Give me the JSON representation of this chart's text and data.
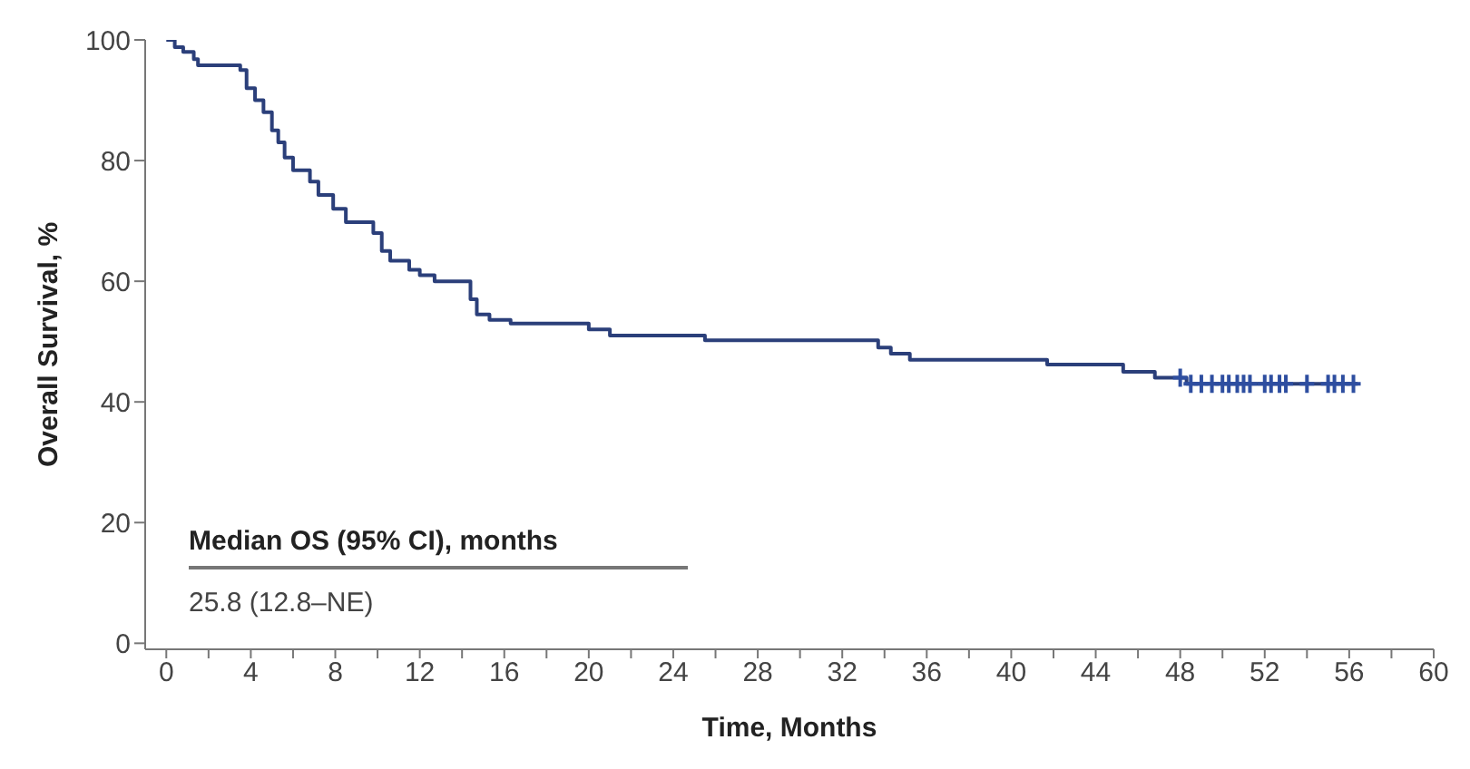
{
  "chart_data": {
    "type": "step",
    "xlabel": "Time, Months",
    "ylabel": "Overall Survival, %",
    "xlim": [
      -1,
      60
    ],
    "ylim": [
      -1,
      100
    ],
    "xticks": [
      0,
      {
        "value": 2,
        "label": null
      },
      4,
      {
        "value": 6,
        "label": null
      },
      8,
      {
        "value": 10,
        "label": null
      },
      12,
      {
        "value": 14,
        "label": null
      },
      16,
      {
        "value": 18,
        "label": null
      },
      20,
      {
        "value": 22,
        "label": null
      },
      24,
      {
        "value": 26,
        "label": null
      },
      28,
      {
        "value": 30,
        "label": null
      },
      32,
      {
        "value": 34,
        "label": null
      },
      36,
      {
        "value": 38,
        "label": null
      },
      40,
      {
        "value": 42,
        "label": null
      },
      44,
      {
        "value": 46,
        "label": null
      },
      48,
      {
        "value": 50,
        "label": null
      },
      52,
      {
        "value": 54,
        "label": null
      },
      56,
      {
        "value": 58,
        "label": null
      },
      60
    ],
    "yticks": [
      0,
      20,
      40,
      60,
      80,
      100
    ],
    "grid": false,
    "annotations": [
      "Median OS (95% CI), months",
      "25.8 (12.8–NE)"
    ],
    "series": [
      {
        "color": "#2b3f7a",
        "marker": "none",
        "x": [
          0,
          0.4,
          0.8,
          1.3,
          1.5,
          3.5,
          3.8,
          4.2,
          4.6,
          5.0,
          5.3,
          5.6,
          6.0,
          6.8,
          7.2,
          7.9,
          8.5,
          9.8,
          10.2,
          10.6,
          11.5,
          12.0,
          12.7,
          14.4,
          14.7,
          15.3,
          16.3,
          20,
          21,
          25.5,
          33.7,
          34.3,
          35.2,
          41.7,
          45.3,
          46.8,
          48.3,
          56.4
        ],
        "values": [
          100,
          98.8,
          98,
          96.8,
          95.8,
          95,
          92,
          90,
          88,
          85,
          83,
          80.5,
          78.4,
          76.5,
          74.3,
          72,
          69.8,
          68,
          65,
          63.4,
          61.9,
          61,
          60,
          57,
          54.5,
          53.6,
          53,
          52,
          51,
          50.2,
          49,
          48,
          47,
          46.2,
          45,
          44,
          43,
          43
        ]
      },
      {
        "type": "scatter",
        "color": "#2e4ea0",
        "marker": "cross",
        "x": [
          48.0,
          48.5,
          49.0,
          49.5,
          50.0,
          50.3,
          50.7,
          51.0,
          51.3,
          52.0,
          52.3,
          52.7,
          53.0,
          54.0,
          55.0,
          55.3,
          55.7,
          56.2
        ],
        "values": [
          44,
          43,
          43,
          43,
          43,
          43,
          43,
          43,
          43,
          43,
          43,
          43,
          43,
          43,
          43,
          43,
          43,
          43
        ]
      }
    ]
  }
}
